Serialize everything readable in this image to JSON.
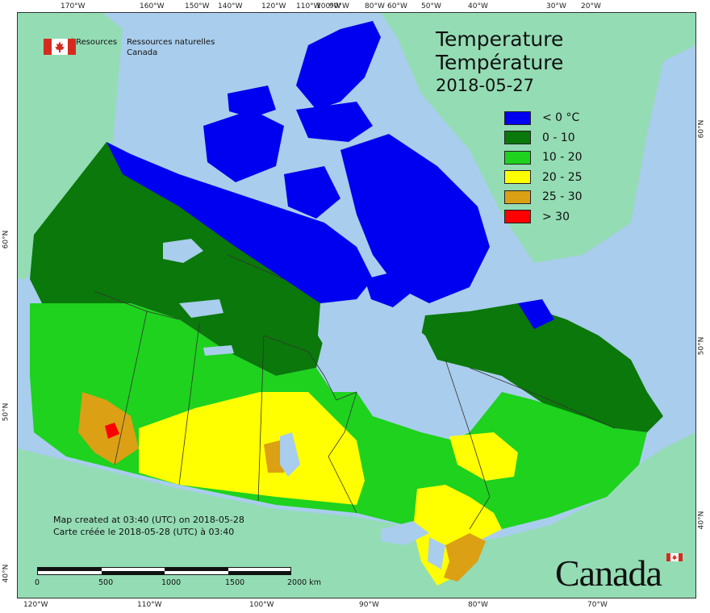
{
  "agency": {
    "name_en_line1": "Natural Resources",
    "name_en_line2": "Canada",
    "name_fr_line1": "Ressources naturelles",
    "name_fr_line2": "Canada"
  },
  "title": {
    "line_en": "Temperature",
    "line_fr": "Température",
    "date": "2018-05-27"
  },
  "legend": [
    {
      "label": "< 0 °C",
      "color": "#0000f0"
    },
    {
      "label": "0 - 10",
      "color": "#0a780a"
    },
    {
      "label": "10 - 20",
      "color": "#1ed21e"
    },
    {
      "label": "20 - 25",
      "color": "#ffff00"
    },
    {
      "label": "25 - 30",
      "color": "#dca014"
    },
    {
      "label": "> 30",
      "color": "#ff0000"
    }
  ],
  "credit": {
    "line_en": "Map created at 03:40 (UTC) on 2018-05-28",
    "line_fr": "Carte créée le 2018-05-28 (UTC) à 03:40"
  },
  "scale": {
    "labels": [
      "0",
      "500",
      "1000",
      "1500",
      "2000 km"
    ]
  },
  "ticks": {
    "top": [
      "170°W",
      "160°W",
      "150°W",
      "140°W",
      "120°W",
      "110°W",
      "100°W",
      "90°W",
      "80°W",
      "60°W",
      "50°W",
      "40°W",
      "30°W",
      "20°W"
    ],
    "bottom": [
      "120°W",
      "110°W",
      "100°W",
      "90°W",
      "80°W",
      "70°W"
    ],
    "left": [
      "60°N",
      "50°N",
      "40°N"
    ],
    "right": [
      "60°N",
      "50°N",
      "40°N"
    ]
  },
  "wordmark": "Canada",
  "colors": {
    "water": "#a9cdec",
    "foreign_land": "#94dcb4",
    "boundary": "#333333"
  }
}
